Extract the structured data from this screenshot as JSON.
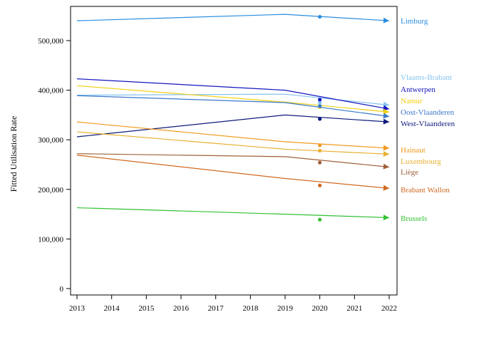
{
  "chart_data": {
    "type": "line",
    "ylabel": "Fitted Utilisation Rate",
    "xlabel": "",
    "xlim": [
      2013,
      2022
    ],
    "ylim": [
      0,
      560000
    ],
    "x_ticks": [
      "2013",
      "2014",
      "2015",
      "2016",
      "2017",
      "2018",
      "2019",
      "2020",
      "2021",
      "2022"
    ],
    "y_ticks": [
      {
        "value": 0,
        "label": "0"
      },
      {
        "value": 100000,
        "label": "100,000"
      },
      {
        "value": 200000,
        "label": "200,000"
      },
      {
        "value": 300000,
        "label": "300,000"
      },
      {
        "value": 400000,
        "label": "400,000"
      },
      {
        "value": 500000,
        "label": "500,000"
      }
    ],
    "series": [
      {
        "name": "Limburg",
        "color": "#2b8de0",
        "x": [
          2013,
          2019,
          2022
        ],
        "y": [
          540000,
          553000,
          540000
        ],
        "observed": {
          "x": 2020,
          "y": 548000
        }
      },
      {
        "name": "Vlaams-Brabant",
        "color": "#85c3f0",
        "x": [
          2013,
          2019,
          2022
        ],
        "y": [
          390000,
          392000,
          370000
        ],
        "observed": {
          "x": 2020,
          "y": 375000
        }
      },
      {
        "name": "Antwerpen",
        "color": "#1515c0",
        "x": [
          2013,
          2019,
          2022
        ],
        "y": [
          423000,
          400000,
          362000
        ],
        "observed": {
          "x": 2020,
          "y": 381000
        }
      },
      {
        "name": "Namur",
        "color": "#f0d010",
        "x": [
          2013,
          2019,
          2022
        ],
        "y": [
          409000,
          376000,
          356000
        ],
        "observed": {
          "x": 2020,
          "y": 366000
        }
      },
      {
        "name": "Oost-Vlaanderen",
        "color": "#3a78c8",
        "x": [
          2013,
          2019,
          2022
        ],
        "y": [
          389000,
          375000,
          347000
        ],
        "observed": {
          "x": 2020,
          "y": 368000
        }
      },
      {
        "name": "West-Vlaanderen",
        "color": "#0e1a7a",
        "x": [
          2013,
          2019,
          2022
        ],
        "y": [
          306000,
          350000,
          336000
        ],
        "observed": {
          "x": 2020,
          "y": 342000
        }
      },
      {
        "name": "Hainaut",
        "color": "#f09a20",
        "x": [
          2013,
          2019,
          2022
        ],
        "y": [
          336000,
          296000,
          283000
        ],
        "observed": {
          "x": 2020,
          "y": 289000
        }
      },
      {
        "name": "Luxembourg",
        "color": "#e8b030",
        "x": [
          2013,
          2019,
          2022
        ],
        "y": [
          316000,
          281000,
          271000
        ],
        "observed": {
          "x": 2020,
          "y": 278000
        }
      },
      {
        "name": "Liège",
        "color": "#a0603a",
        "x": [
          2013,
          2019,
          2022
        ],
        "y": [
          272000,
          266000,
          245000
        ],
        "observed": {
          "x": 2020,
          "y": 254000
        }
      },
      {
        "name": "Brabant Wallon",
        "color": "#d06820",
        "x": [
          2013,
          2019,
          2022
        ],
        "y": [
          269000,
          222000,
          202000
        ],
        "observed": {
          "x": 2020,
          "y": 208000
        }
      },
      {
        "name": "Brussels",
        "color": "#33c033",
        "x": [
          2013,
          2019,
          2022
        ],
        "y": [
          163000,
          150000,
          143000
        ],
        "observed": {
          "x": 2020,
          "y": 139000
        }
      }
    ],
    "grid": false,
    "legend": "direct labels at right"
  }
}
